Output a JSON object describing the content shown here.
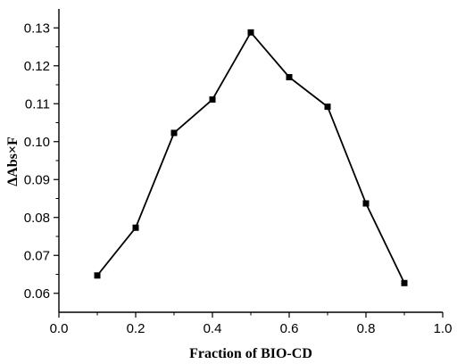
{
  "chart_data": {
    "type": "line",
    "title": "",
    "xlabel": "Fraction of BIO-CD",
    "ylabel": "ΔAbs×F",
    "xlim": [
      0.0,
      1.0
    ],
    "ylim": [
      0.055,
      0.135
    ],
    "x_ticks": [
      "0.0",
      "0.2",
      "0.4",
      "0.6",
      "0.8",
      "1.0"
    ],
    "y_ticks": [
      "0.06",
      "0.07",
      "0.08",
      "0.09",
      "0.10",
      "0.11",
      "0.12",
      "0.13"
    ],
    "grid": false,
    "legend": "none",
    "marker": "square",
    "color": "#000000",
    "series": [
      {
        "x": [
          0.1,
          0.2,
          0.3,
          0.4,
          0.5,
          0.6,
          0.7,
          0.8,
          0.9
        ],
        "y": [
          0.0647,
          0.0773,
          0.1023,
          0.1111,
          0.1288,
          0.117,
          0.1092,
          0.0837,
          0.0627
        ]
      }
    ]
  }
}
